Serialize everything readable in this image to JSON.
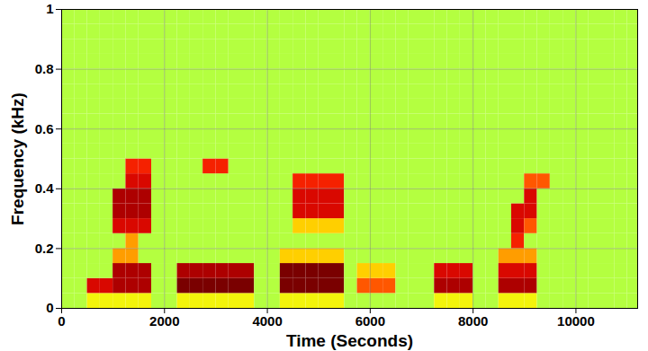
{
  "chart_data": {
    "type": "heatmap",
    "xlabel": "Time (Seconds)",
    "ylabel": "Frequency (kHz)",
    "xlim": [
      0,
      11200
    ],
    "ylim": [
      0,
      1
    ],
    "xticks": [
      0,
      2000,
      4000,
      6000,
      8000,
      10000
    ],
    "yticks": [
      0,
      0.2,
      0.4,
      0.6,
      0.8,
      1
    ],
    "grid": true,
    "x": [
      0,
      250,
      500,
      750,
      1000,
      1250,
      1500,
      1750,
      2000,
      2250,
      2500,
      2750,
      3000,
      3250,
      3500,
      3750,
      4000,
      4250,
      4500,
      4750,
      5000,
      5250,
      5500,
      5750,
      6000,
      6250,
      6500,
      6750,
      7000,
      7250,
      7500,
      7750,
      8000,
      8250,
      8500,
      8750,
      9000,
      9250,
      9500,
      9750,
      10000,
      10250,
      10500,
      10750,
      11000
    ],
    "y": [
      0,
      0.05,
      0.1,
      0.15,
      0.2,
      0.25,
      0.3,
      0.35,
      0.4,
      0.45,
      0.5,
      0.55,
      0.6,
      0.65,
      0.7,
      0.75,
      0.8,
      0.85,
      0.9,
      0.95
    ],
    "z": [
      [
        0.58,
        0.58,
        0.65,
        0.65,
        0.65,
        0.65,
        0.65,
        0.58,
        0.58,
        0.65,
        0.65,
        0.65,
        0.65,
        0.65,
        0.65,
        0.58,
        0.58,
        0.65,
        0.65,
        0.65,
        0.65,
        0.65,
        0.58,
        0.58,
        0.58,
        0.58,
        0.58,
        0.58,
        0.58,
        0.65,
        0.65,
        0.65,
        0.58,
        0.58,
        0.65,
        0.65,
        0.65,
        0.58,
        0.58,
        0.58,
        0.58,
        0.58,
        0.58,
        0.58,
        0.58
      ],
      [
        0.58,
        0.58,
        0.9,
        0.9,
        0.95,
        0.95,
        0.95,
        0.58,
        0.58,
        1,
        1,
        1,
        1,
        1,
        1,
        0.58,
        0.58,
        1,
        1,
        1,
        1,
        1,
        0.58,
        0.8,
        0.8,
        0.8,
        0.58,
        0.58,
        0.58,
        0.95,
        0.95,
        0.95,
        0.58,
        0.58,
        0.95,
        0.95,
        0.95,
        0.58,
        0.58,
        0.58,
        0.58,
        0.58,
        0.58,
        0.58,
        0.58
      ],
      [
        0.58,
        0.58,
        0.58,
        0.58,
        0.95,
        0.95,
        0.95,
        0.58,
        0.58,
        0.95,
        0.95,
        0.95,
        0.95,
        0.95,
        0.95,
        0.58,
        0.58,
        1,
        1,
        1,
        1,
        1,
        0.58,
        0.7,
        0.7,
        0.7,
        0.58,
        0.58,
        0.58,
        0.9,
        0.9,
        0.9,
        0.58,
        0.58,
        0.9,
        0.9,
        0.9,
        0.58,
        0.58,
        0.58,
        0.58,
        0.58,
        0.58,
        0.58,
        0.58
      ],
      [
        0.58,
        0.58,
        0.58,
        0.58,
        0.75,
        0.75,
        0.58,
        0.58,
        0.58,
        0.58,
        0.58,
        0.58,
        0.58,
        0.58,
        0.58,
        0.58,
        0.58,
        0.7,
        0.7,
        0.7,
        0.7,
        0.7,
        0.58,
        0.58,
        0.58,
        0.58,
        0.58,
        0.58,
        0.58,
        0.58,
        0.58,
        0.58,
        0.58,
        0.58,
        0.75,
        0.75,
        0.75,
        0.58,
        0.58,
        0.58,
        0.58,
        0.58,
        0.58,
        0.58,
        0.58
      ],
      [
        0.58,
        0.58,
        0.58,
        0.58,
        0.58,
        0.75,
        0.58,
        0.58,
        0.58,
        0.58,
        0.58,
        0.58,
        0.58,
        0.58,
        0.58,
        0.58,
        0.58,
        0.58,
        0.58,
        0.58,
        0.58,
        0.58,
        0.58,
        0.58,
        0.58,
        0.58,
        0.58,
        0.58,
        0.58,
        0.58,
        0.58,
        0.58,
        0.58,
        0.58,
        0.58,
        0.85,
        0.58,
        0.58,
        0.58,
        0.58,
        0.58,
        0.58,
        0.58,
        0.58,
        0.58
      ],
      [
        0.58,
        0.58,
        0.58,
        0.58,
        0.9,
        0.9,
        0.9,
        0.58,
        0.58,
        0.58,
        0.58,
        0.58,
        0.58,
        0.58,
        0.58,
        0.58,
        0.58,
        0.58,
        0.7,
        0.7,
        0.7,
        0.7,
        0.58,
        0.58,
        0.58,
        0.58,
        0.58,
        0.58,
        0.58,
        0.58,
        0.58,
        0.58,
        0.58,
        0.58,
        0.58,
        0.9,
        0.8,
        0.58,
        0.58,
        0.58,
        0.58,
        0.58,
        0.58,
        0.58,
        0.58
      ],
      [
        0.58,
        0.58,
        0.58,
        0.58,
        0.95,
        0.95,
        0.95,
        0.58,
        0.58,
        0.58,
        0.58,
        0.58,
        0.58,
        0.58,
        0.58,
        0.58,
        0.58,
        0.58,
        0.9,
        0.9,
        0.9,
        0.9,
        0.58,
        0.58,
        0.58,
        0.58,
        0.58,
        0.58,
        0.58,
        0.58,
        0.58,
        0.58,
        0.58,
        0.58,
        0.58,
        0.9,
        0.9,
        0.58,
        0.58,
        0.58,
        0.58,
        0.58,
        0.58,
        0.58,
        0.58
      ],
      [
        0.58,
        0.58,
        0.58,
        0.58,
        0.95,
        0.95,
        0.95,
        0.58,
        0.58,
        0.58,
        0.58,
        0.58,
        0.58,
        0.58,
        0.58,
        0.58,
        0.58,
        0.58,
        0.9,
        0.9,
        0.9,
        0.9,
        0.58,
        0.58,
        0.58,
        0.58,
        0.58,
        0.58,
        0.58,
        0.58,
        0.58,
        0.58,
        0.58,
        0.58,
        0.58,
        0.58,
        0.9,
        0.58,
        0.58,
        0.58,
        0.58,
        0.58,
        0.58,
        0.58,
        0.58
      ],
      [
        0.58,
        0.58,
        0.58,
        0.58,
        0.58,
        0.9,
        0.9,
        0.58,
        0.58,
        0.58,
        0.58,
        0.58,
        0.58,
        0.58,
        0.58,
        0.58,
        0.58,
        0.58,
        0.85,
        0.85,
        0.85,
        0.85,
        0.58,
        0.58,
        0.58,
        0.58,
        0.58,
        0.58,
        0.58,
        0.58,
        0.58,
        0.58,
        0.58,
        0.58,
        0.58,
        0.58,
        0.8,
        0.8,
        0.58,
        0.58,
        0.58,
        0.58,
        0.58,
        0.58,
        0.58
      ],
      [
        0.58,
        0.58,
        0.58,
        0.58,
        0.58,
        0.85,
        0.85,
        0.58,
        0.58,
        0.58,
        0.58,
        0.85,
        0.85,
        0.58,
        0.58,
        0.58,
        0.58,
        0.58,
        0.58,
        0.58,
        0.58,
        0.58,
        0.58,
        0.58,
        0.58,
        0.58,
        0.58,
        0.58,
        0.58,
        0.58,
        0.58,
        0.58,
        0.58,
        0.58,
        0.58,
        0.58,
        0.58,
        0.58,
        0.58,
        0.58,
        0.58,
        0.58,
        0.58,
        0.58,
        0.58
      ],
      [
        0.58,
        0.58,
        0.58,
        0.58,
        0.58,
        0.58,
        0.58,
        0.58,
        0.58,
        0.58,
        0.58,
        0.58,
        0.58,
        0.58,
        0.58,
        0.58,
        0.58,
        0.58,
        0.58,
        0.58,
        0.58,
        0.58,
        0.58,
        0.58,
        0.58,
        0.58,
        0.58,
        0.58,
        0.58,
        0.58,
        0.58,
        0.58,
        0.58,
        0.58,
        0.58,
        0.58,
        0.58,
        0.58,
        0.58,
        0.58,
        0.58,
        0.58,
        0.58,
        0.58,
        0.58
      ],
      [
        0.58,
        0.58,
        0.58,
        0.58,
        0.58,
        0.58,
        0.58,
        0.58,
        0.58,
        0.58,
        0.58,
        0.58,
        0.58,
        0.58,
        0.58,
        0.58,
        0.58,
        0.58,
        0.58,
        0.58,
        0.58,
        0.58,
        0.58,
        0.58,
        0.58,
        0.58,
        0.58,
        0.58,
        0.58,
        0.58,
        0.58,
        0.58,
        0.58,
        0.58,
        0.58,
        0.58,
        0.58,
        0.58,
        0.58,
        0.58,
        0.58,
        0.58,
        0.58,
        0.58,
        0.58
      ],
      [
        0.58,
        0.58,
        0.58,
        0.58,
        0.58,
        0.58,
        0.58,
        0.58,
        0.58,
        0.58,
        0.58,
        0.58,
        0.58,
        0.58,
        0.58,
        0.58,
        0.58,
        0.58,
        0.58,
        0.58,
        0.58,
        0.58,
        0.58,
        0.58,
        0.58,
        0.58,
        0.58,
        0.58,
        0.58,
        0.58,
        0.58,
        0.58,
        0.58,
        0.58,
        0.58,
        0.58,
        0.58,
        0.58,
        0.58,
        0.58,
        0.58,
        0.58,
        0.58,
        0.58,
        0.58
      ],
      [
        0.58,
        0.58,
        0.58,
        0.58,
        0.58,
        0.58,
        0.58,
        0.58,
        0.58,
        0.58,
        0.58,
        0.58,
        0.58,
        0.58,
        0.58,
        0.58,
        0.58,
        0.58,
        0.58,
        0.58,
        0.58,
        0.58,
        0.58,
        0.58,
        0.58,
        0.58,
        0.58,
        0.58,
        0.58,
        0.58,
        0.58,
        0.58,
        0.58,
        0.58,
        0.58,
        0.58,
        0.58,
        0.58,
        0.58,
        0.58,
        0.58,
        0.58,
        0.58,
        0.58,
        0.58
      ],
      [
        0.58,
        0.58,
        0.58,
        0.58,
        0.58,
        0.58,
        0.58,
        0.58,
        0.58,
        0.58,
        0.58,
        0.58,
        0.58,
        0.58,
        0.58,
        0.58,
        0.58,
        0.58,
        0.58,
        0.58,
        0.58,
        0.58,
        0.58,
        0.58,
        0.58,
        0.58,
        0.58,
        0.58,
        0.58,
        0.58,
        0.58,
        0.58,
        0.58,
        0.58,
        0.58,
        0.58,
        0.58,
        0.58,
        0.58,
        0.58,
        0.58,
        0.58,
        0.58,
        0.58,
        0.58
      ],
      [
        0.58,
        0.58,
        0.58,
        0.58,
        0.58,
        0.58,
        0.58,
        0.58,
        0.58,
        0.58,
        0.58,
        0.58,
        0.58,
        0.58,
        0.58,
        0.58,
        0.58,
        0.58,
        0.58,
        0.58,
        0.58,
        0.58,
        0.58,
        0.58,
        0.58,
        0.58,
        0.58,
        0.58,
        0.58,
        0.58,
        0.58,
        0.58,
        0.58,
        0.58,
        0.58,
        0.58,
        0.58,
        0.58,
        0.58,
        0.58,
        0.58,
        0.58,
        0.58,
        0.58,
        0.58
      ],
      [
        0.58,
        0.58,
        0.58,
        0.58,
        0.58,
        0.58,
        0.58,
        0.58,
        0.58,
        0.58,
        0.58,
        0.58,
        0.58,
        0.58,
        0.58,
        0.58,
        0.58,
        0.58,
        0.58,
        0.58,
        0.58,
        0.58,
        0.58,
        0.58,
        0.58,
        0.58,
        0.58,
        0.58,
        0.58,
        0.58,
        0.58,
        0.58,
        0.58,
        0.58,
        0.58,
        0.58,
        0.58,
        0.58,
        0.58,
        0.58,
        0.58,
        0.58,
        0.58,
        0.58,
        0.58
      ],
      [
        0.58,
        0.58,
        0.58,
        0.58,
        0.58,
        0.58,
        0.58,
        0.58,
        0.58,
        0.58,
        0.58,
        0.58,
        0.58,
        0.58,
        0.58,
        0.58,
        0.58,
        0.58,
        0.58,
        0.58,
        0.58,
        0.58,
        0.58,
        0.58,
        0.58,
        0.58,
        0.58,
        0.58,
        0.58,
        0.58,
        0.58,
        0.58,
        0.58,
        0.58,
        0.58,
        0.58,
        0.58,
        0.58,
        0.58,
        0.58,
        0.58,
        0.58,
        0.58,
        0.58,
        0.58
      ],
      [
        0.58,
        0.58,
        0.58,
        0.58,
        0.58,
        0.58,
        0.58,
        0.58,
        0.58,
        0.58,
        0.58,
        0.58,
        0.58,
        0.58,
        0.58,
        0.58,
        0.58,
        0.58,
        0.58,
        0.58,
        0.58,
        0.58,
        0.58,
        0.58,
        0.58,
        0.58,
        0.58,
        0.58,
        0.58,
        0.58,
        0.58,
        0.58,
        0.58,
        0.58,
        0.58,
        0.58,
        0.58,
        0.58,
        0.58,
        0.58,
        0.58,
        0.58,
        0.58,
        0.58,
        0.58
      ],
      [
        0.58,
        0.58,
        0.58,
        0.58,
        0.58,
        0.58,
        0.58,
        0.58,
        0.58,
        0.58,
        0.58,
        0.58,
        0.58,
        0.58,
        0.58,
        0.58,
        0.58,
        0.58,
        0.58,
        0.58,
        0.58,
        0.58,
        0.58,
        0.58,
        0.58,
        0.58,
        0.58,
        0.58,
        0.58,
        0.58,
        0.58,
        0.58,
        0.58,
        0.58,
        0.58,
        0.58,
        0.58,
        0.58,
        0.58,
        0.58,
        0.58,
        0.58,
        0.58,
        0.58,
        0.58
      ]
    ]
  }
}
